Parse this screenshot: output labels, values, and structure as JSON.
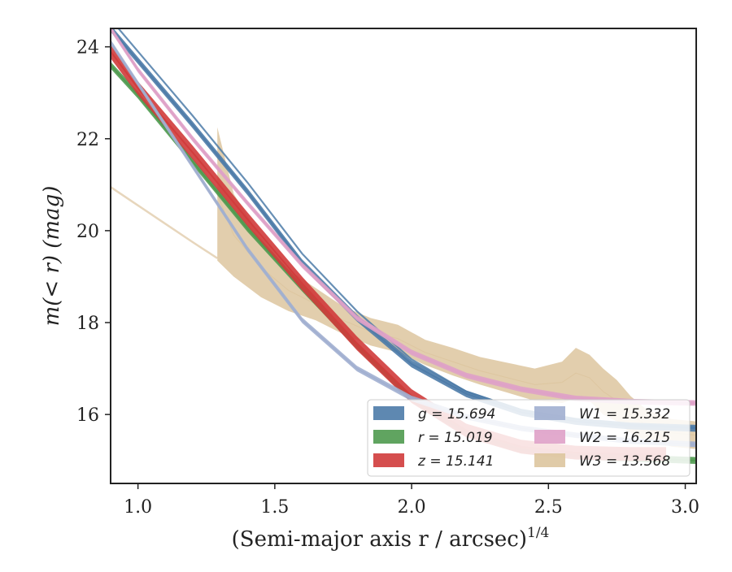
{
  "chart_data": {
    "type": "line",
    "xlabel": "(Semi-major axis r / arcsec)",
    "xlabel_superscript": "1/4",
    "ylabel": "m(< r) (mag)",
    "xlim": [
      0.9,
      3.04
    ],
    "ylim": [
      24.4,
      14.5
    ],
    "y_inverted": true,
    "x_ticks": [
      1.0,
      1.5,
      2.0,
      2.5,
      3.0
    ],
    "x_tick_labels": [
      "1.0",
      "1.5",
      "2.0",
      "2.5",
      "3.0"
    ],
    "y_ticks": [
      16,
      18,
      20,
      22,
      24
    ],
    "y_tick_labels": [
      "16",
      "18",
      "20",
      "22",
      "24"
    ],
    "grid": false,
    "legend_position": "lower-right",
    "series": [
      {
        "name": "g = 15.694",
        "color": "#4c7ba8",
        "x": [
          0.9,
          1.0,
          1.2,
          1.4,
          1.6,
          1.8,
          2.0,
          2.2,
          2.4,
          2.6,
          2.8,
          3.04
        ],
        "y": [
          24.4,
          23.7,
          22.3,
          20.85,
          19.3,
          18.1,
          17.1,
          16.45,
          16.05,
          15.85,
          15.75,
          15.7
        ],
        "model_x": [
          0.9,
          1.0,
          1.2,
          1.4,
          1.6,
          1.8,
          2.0,
          2.2,
          2.4,
          2.6,
          2.8,
          3.04
        ],
        "model_y": [
          24.6,
          23.9,
          22.5,
          21.05,
          19.5,
          18.25,
          17.2,
          16.5,
          16.1,
          15.9,
          15.78,
          15.72
        ],
        "band_width": 0.15
      },
      {
        "name": "r = 15.019",
        "color": "#4f9a4f",
        "x": [
          0.9,
          1.0,
          1.2,
          1.4,
          1.6,
          1.8,
          2.0,
          2.2,
          2.4,
          2.6,
          2.8,
          3.04
        ],
        "y": [
          23.6,
          22.95,
          21.5,
          20.05,
          18.75,
          17.5,
          16.35,
          15.6,
          15.23,
          15.1,
          15.05,
          15.0
        ],
        "band_width": 0.15
      },
      {
        "name": "z = 15.141",
        "color": "#d03b3b",
        "x": [
          0.9,
          1.0,
          1.2,
          1.4,
          1.6,
          1.8,
          2.0,
          2.2,
          2.4,
          2.6,
          2.8,
          2.93
        ],
        "y": [
          23.9,
          23.1,
          21.7,
          20.25,
          18.85,
          17.55,
          16.4,
          15.65,
          15.3,
          15.17,
          15.14,
          15.14
        ],
        "band_width": 0.3
      },
      {
        "name": "W1 = 15.332",
        "color": "#a1afd0",
        "x": [
          0.9,
          1.0,
          1.2,
          1.4,
          1.6,
          1.8,
          2.0,
          2.2,
          2.4,
          2.6,
          2.8,
          3.04
        ],
        "y": [
          24.1,
          23.2,
          21.4,
          19.6,
          18.05,
          17.0,
          16.35,
          15.95,
          15.7,
          15.55,
          15.42,
          15.35
        ],
        "band_width": 0.12
      },
      {
        "name": "W2 = 16.215",
        "color": "#dfa1c8",
        "x": [
          0.9,
          1.0,
          1.2,
          1.4,
          1.6,
          1.8,
          2.0,
          2.2,
          2.4,
          2.6,
          2.8,
          3.04
        ],
        "y": [
          24.4,
          23.5,
          22.0,
          20.6,
          19.25,
          18.1,
          17.35,
          16.85,
          16.55,
          16.35,
          16.28,
          16.25
        ],
        "band_width": 0.12
      },
      {
        "name": "W3 = 13.568",
        "color": "#ddc59f",
        "x": [
          1.29,
          1.35,
          1.45,
          1.55,
          1.65,
          1.75,
          1.85,
          1.95,
          2.05,
          2.15,
          2.25,
          2.35,
          2.45,
          2.55,
          2.6,
          2.65,
          2.7,
          2.75,
          2.8,
          2.85,
          2.9,
          2.95,
          3.04
        ],
        "y": [
          20.8,
          19.9,
          19.2,
          18.7,
          18.4,
          18.05,
          17.8,
          17.65,
          17.35,
          17.15,
          16.95,
          16.8,
          16.65,
          16.7,
          16.9,
          16.8,
          16.5,
          16.3,
          16.0,
          15.8,
          15.7,
          15.6,
          15.55
        ],
        "band_width": [
          2.9,
          1.8,
          1.3,
          0.9,
          0.7,
          0.6,
          0.6,
          0.6,
          0.55,
          0.6,
          0.6,
          0.65,
          0.7,
          0.9,
          1.1,
          1.0,
          1.0,
          0.9,
          0.8,
          0.7,
          0.6,
          0.6,
          0.6
        ],
        "extrapolation_x": [
          0.9,
          1.0,
          1.1,
          1.2,
          1.29
        ],
        "extrapolation_y": [
          20.95,
          20.55,
          20.15,
          19.75,
          19.4
        ]
      }
    ]
  }
}
